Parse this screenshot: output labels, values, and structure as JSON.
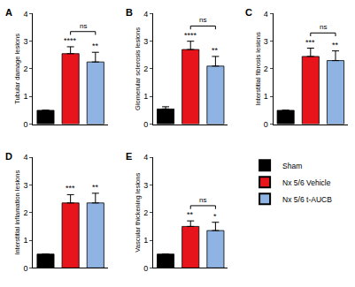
{
  "chart_data": [
    {
      "type": "bar",
      "panel": "A",
      "y_label": "Tubular damage lesions",
      "ylim": [
        0,
        4
      ],
      "yticks": [
        0,
        1,
        2,
        3,
        4
      ],
      "tick_labels": "y",
      "series": [
        {
          "name": "Sham",
          "color": "#000000",
          "values": [
            0.5
          ],
          "error": [
            0
          ]
        },
        {
          "name": "Nx 5/6 Vehicle",
          "color": "#e8141b",
          "values": [
            2.55
          ],
          "error": [
            0.25
          ]
        },
        {
          "name": "Nx 5/6 t-AUCB",
          "color": "#8fb4e3",
          "values": [
            2.25
          ],
          "error": [
            0.35
          ]
        }
      ],
      "annotations": [
        {
          "text": "****",
          "at": "Nx 5/6 Vehicle"
        },
        {
          "text": "**",
          "at": "Nx 5/6 t-AUCB"
        },
        {
          "text": "ns",
          "between": [
            "Nx 5/6 Vehicle",
            "Nx 5/6 t-AUCB"
          ]
        }
      ]
    },
    {
      "type": "bar",
      "panel": "B",
      "y_label": "Glomerular sclerosis lesions",
      "ylim": [
        0,
        4
      ],
      "yticks": [
        0,
        1,
        2,
        3,
        4
      ],
      "tick_labels": "y",
      "series": [
        {
          "name": "Sham",
          "color": "#000000",
          "values": [
            0.55
          ],
          "error": [
            0.08
          ]
        },
        {
          "name": "Nx 5/6 Vehicle",
          "color": "#e8141b",
          "values": [
            2.7
          ],
          "error": [
            0.3
          ]
        },
        {
          "name": "Nx 5/6 t-AUCB",
          "color": "#8fb4e3",
          "values": [
            2.1
          ],
          "error": [
            0.35
          ]
        }
      ],
      "annotations": [
        {
          "text": "****",
          "at": "Nx 5/6 Vehicle"
        },
        {
          "text": "**",
          "at": "Nx 5/6 t-AUCB"
        },
        {
          "text": "ns",
          "between": [
            "Nx 5/6 Vehicle",
            "Nx 5/6 t-AUCB"
          ]
        }
      ]
    },
    {
      "type": "bar",
      "panel": "C",
      "y_label": "Interstitial fibrosis lesions",
      "ylim": [
        0,
        4
      ],
      "yticks": [
        0,
        1,
        2,
        3,
        4
      ],
      "tick_labels": "y",
      "series": [
        {
          "name": "Sham",
          "color": "#000000",
          "values": [
            0.5
          ],
          "error": [
            0
          ]
        },
        {
          "name": "Nx 5/6 Vehicle",
          "color": "#e8141b",
          "values": [
            2.45
          ],
          "error": [
            0.3
          ]
        },
        {
          "name": "Nx 5/6 t-AUCB",
          "color": "#8fb4e3",
          "values": [
            2.3
          ],
          "error": [
            0.35
          ]
        }
      ],
      "annotations": [
        {
          "text": "***",
          "at": "Nx 5/6 Vehicle"
        },
        {
          "text": "**",
          "at": "Nx 5/6 t-AUCB"
        },
        {
          "text": "ns",
          "between": [
            "Nx 5/6 Vehicle",
            "Nx 5/6 t-AUCB"
          ]
        }
      ]
    },
    {
      "type": "bar",
      "panel": "D",
      "y_label": "Interstitial inflamation lesions",
      "ylim": [
        0,
        4
      ],
      "yticks": [
        0,
        1,
        2,
        3,
        4
      ],
      "tick_labels": "y",
      "series": [
        {
          "name": "Sham",
          "color": "#000000",
          "values": [
            0.5
          ],
          "error": [
            0
          ]
        },
        {
          "name": "Nx 5/6 Vehicle",
          "color": "#e8141b",
          "values": [
            2.35
          ],
          "error": [
            0.3
          ]
        },
        {
          "name": "Nx 5/6 t-AUCB",
          "color": "#8fb4e3",
          "values": [
            2.35
          ],
          "error": [
            0.35
          ]
        }
      ],
      "annotations": [
        {
          "text": "***",
          "at": "Nx 5/6 Vehicle"
        },
        {
          "text": "**",
          "at": "Nx 5/6 t-AUCB"
        }
      ]
    },
    {
      "type": "bar",
      "panel": "E",
      "y_label": "Vascular thickening lesions",
      "ylim": [
        0,
        4
      ],
      "yticks": [
        0,
        1,
        2,
        3,
        4
      ],
      "tick_labels": "y",
      "legend": "right",
      "series": [
        {
          "name": "Sham",
          "color": "#000000",
          "values": [
            0.5
          ],
          "error": [
            0
          ]
        },
        {
          "name": "Nx 5/6 Vehicle",
          "color": "#e8141b",
          "values": [
            1.5
          ],
          "error": [
            0.2
          ]
        },
        {
          "name": "Nx 5/6 t-AUCB",
          "color": "#8fb4e3",
          "values": [
            1.35
          ],
          "error": [
            0.3
          ]
        }
      ],
      "annotations": [
        {
          "text": "**",
          "at": "Nx 5/6 Vehicle"
        },
        {
          "text": "*",
          "at": "Nx 5/6 t-AUCB"
        },
        {
          "text": "ns",
          "between": [
            "Nx 5/6 Vehicle",
            "Nx 5/6 t-AUCB"
          ]
        }
      ]
    }
  ]
}
